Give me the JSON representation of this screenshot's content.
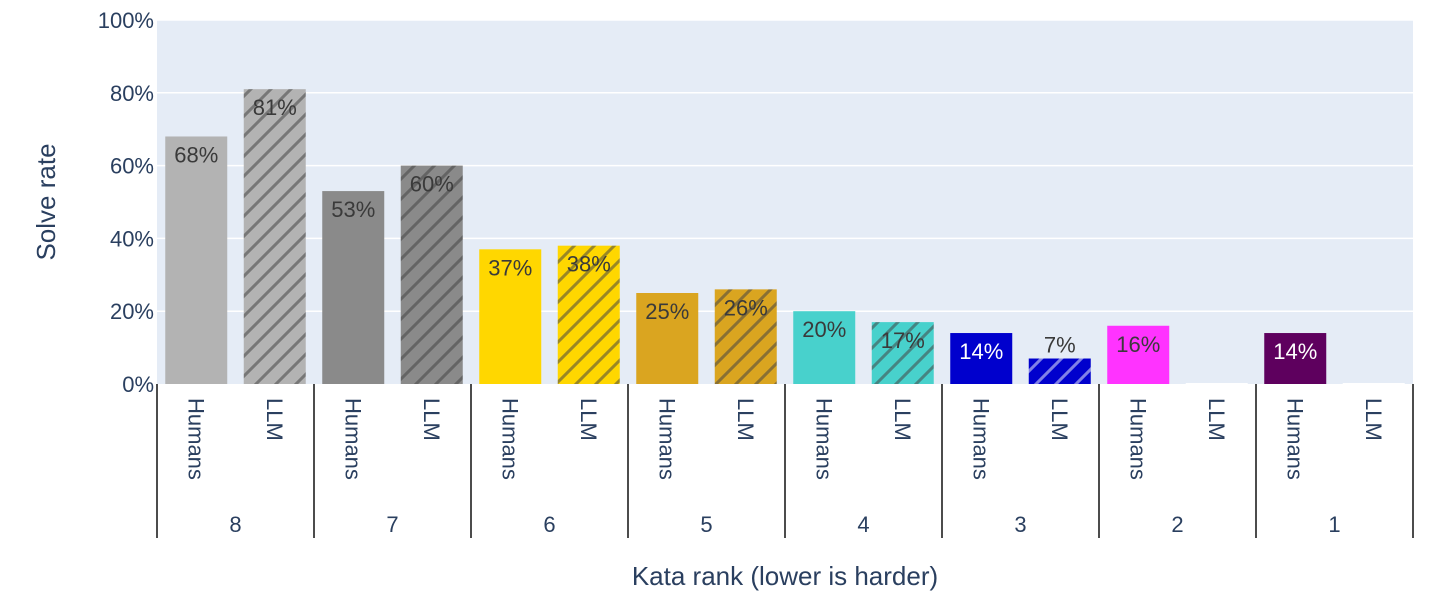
{
  "chart_data": {
    "type": "bar",
    "xlabel": "Kata rank (lower is harder)",
    "ylabel": "Solve rate",
    "ylim": [
      0,
      100
    ],
    "yticks": [
      "0%",
      "20%",
      "40%",
      "60%",
      "80%",
      "100%"
    ],
    "grid": true,
    "groups": [
      {
        "rank": "8",
        "bars": [
          {
            "label": "Humans",
            "value": 68,
            "text": "68%",
            "color": "#b3b3b3",
            "hatch": false,
            "textColor": "#3a3a3a"
          },
          {
            "label": "LLM",
            "value": 81,
            "text": "81%",
            "color": "#b3b3b3",
            "hatch": true,
            "textColor": "#3a3a3a"
          }
        ]
      },
      {
        "rank": "7",
        "bars": [
          {
            "label": "Humans",
            "value": 53,
            "text": "53%",
            "color": "#8a8a8a",
            "hatch": false,
            "textColor": "#3a3a3a"
          },
          {
            "label": "LLM",
            "value": 60,
            "text": "60%",
            "color": "#8a8a8a",
            "hatch": true,
            "textColor": "#3a3a3a"
          }
        ]
      },
      {
        "rank": "6",
        "bars": [
          {
            "label": "Humans",
            "value": 37,
            "text": "37%",
            "color": "#ffd700",
            "hatch": false,
            "textColor": "#3a3a3a"
          },
          {
            "label": "LLM",
            "value": 38,
            "text": "38%",
            "color": "#ffd700",
            "hatch": true,
            "textColor": "#3a3a3a"
          }
        ]
      },
      {
        "rank": "5",
        "bars": [
          {
            "label": "Humans",
            "value": 25,
            "text": "25%",
            "color": "#daa520",
            "hatch": false,
            "textColor": "#3a3a3a"
          },
          {
            "label": "LLM",
            "value": 26,
            "text": "26%",
            "color": "#daa520",
            "hatch": true,
            "textColor": "#3a3a3a"
          }
        ]
      },
      {
        "rank": "4",
        "bars": [
          {
            "label": "Humans",
            "value": 20,
            "text": "20%",
            "color": "#48d1cc",
            "hatch": false,
            "textColor": "#3a3a3a"
          },
          {
            "label": "LLM",
            "value": 17,
            "text": "17%",
            "color": "#48d1cc",
            "hatch": true,
            "textColor": "#3a3a3a"
          }
        ]
      },
      {
        "rank": "3",
        "bars": [
          {
            "label": "Humans",
            "value": 14,
            "text": "14%",
            "color": "#0000cd",
            "hatch": false,
            "textColor": "#ffffff"
          },
          {
            "label": "LLM",
            "value": 7,
            "text": "7%",
            "color": "#0000cd",
            "hatch": true,
            "textColor": "#3a3a3a"
          }
        ]
      },
      {
        "rank": "2",
        "bars": [
          {
            "label": "Humans",
            "value": 16,
            "text": "16%",
            "color": "#ff33ff",
            "hatch": false,
            "textColor": "#3a3a3a"
          },
          {
            "label": "LLM",
            "value": 0,
            "text": "",
            "color": "#ff33ff",
            "hatch": true,
            "textColor": "#3a3a3a"
          }
        ]
      },
      {
        "rank": "1",
        "bars": [
          {
            "label": "Humans",
            "value": 14,
            "text": "14%",
            "color": "#5e005e",
            "hatch": false,
            "textColor": "#ffffff"
          },
          {
            "label": "LLM",
            "value": 0,
            "text": "",
            "color": "#5e005e",
            "hatch": true,
            "textColor": "#3a3a3a"
          }
        ]
      }
    ]
  }
}
